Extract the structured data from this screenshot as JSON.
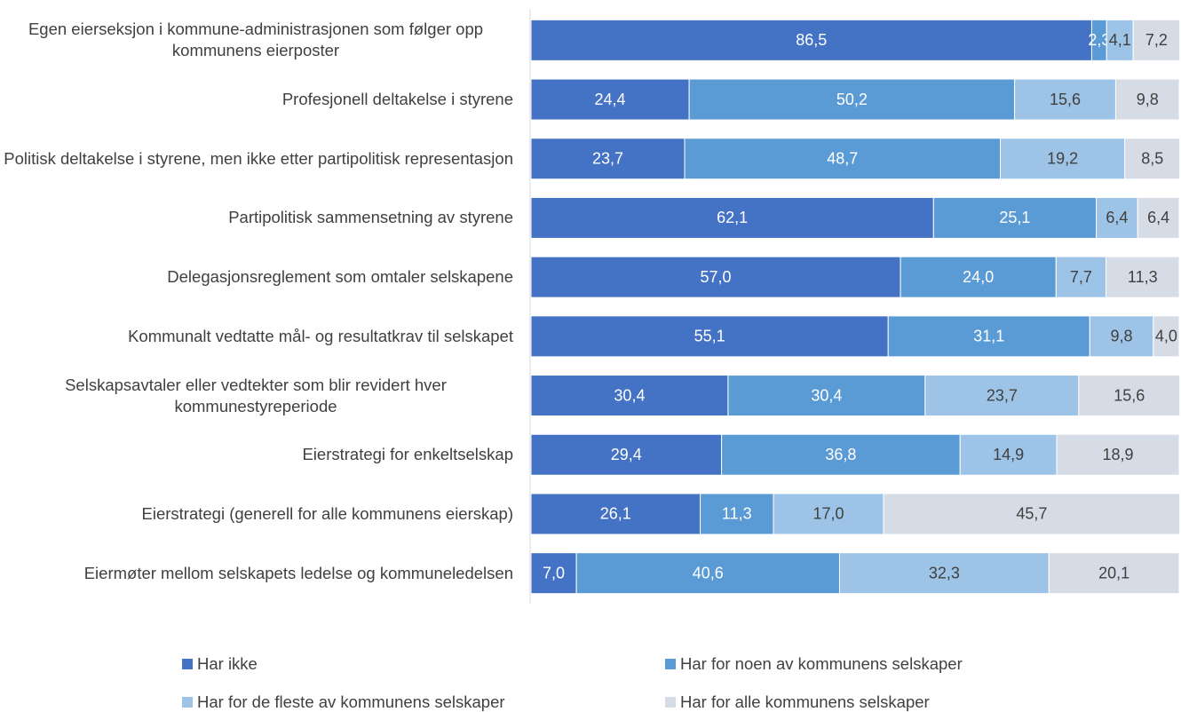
{
  "chart_data": {
    "type": "stacked-barh",
    "categories": [
      "Egen eierseksjon i kommune-administrasjonen som følger opp kommunens eierposter",
      "Profesjonell deltakelse i styrene",
      "Politisk deltakelse i styrene, men ikke etter partipolitisk representasjon",
      "Partipolitisk sammensetning av styrene",
      "Delegasjonsreglement som omtaler selskapene",
      "Kommunalt vedtatte mål- og resultatkrav til selskapet",
      "Selskapsavtaler eller vedtekter som blir revidert hver kommunestyreperiode",
      "Eierstrategi for enkeltselskap",
      "Eierstrategi (generell for alle kommunens eierskap)",
      "Eiermøter mellom selskapets ledelse og kommuneledelsen"
    ],
    "series": [
      {
        "name": "Har ikke",
        "color": "#4472c4",
        "values": [
          86.5,
          24.4,
          23.7,
          62.1,
          57.0,
          55.1,
          30.4,
          29.4,
          26.1,
          7.0
        ],
        "value_labels": [
          "86,5",
          "24,4",
          "23,7",
          "62,1",
          "57,0",
          "55,1",
          "30,4",
          "29,4",
          "26,1",
          "7,0"
        ]
      },
      {
        "name": "Har for noen av kommunens selskaper",
        "color": "#5b9bd5",
        "values": [
          2.3,
          50.2,
          48.7,
          25.1,
          24.0,
          31.1,
          30.4,
          36.8,
          11.3,
          40.6
        ],
        "value_labels": [
          "2,3",
          "50,2",
          "48,7",
          "25,1",
          "24,0",
          "31,1",
          "30,4",
          "36,8",
          "11,3",
          "40,6"
        ]
      },
      {
        "name": "Har for de fleste av kommunens selskaper",
        "color": "#9dc3e6",
        "values": [
          4.1,
          15.6,
          19.2,
          6.4,
          7.7,
          9.8,
          23.7,
          14.9,
          17.0,
          32.3
        ],
        "value_labels": [
          "4,1",
          "15,6",
          "19,2",
          "6,4",
          "7,7",
          "9,8",
          "23,7",
          "14,9",
          "17,0",
          "32,3"
        ]
      },
      {
        "name": "Har for alle kommunens selskaper",
        "color": "#d6dce5",
        "values": [
          7.2,
          9.8,
          8.5,
          6.4,
          11.3,
          4.0,
          15.6,
          18.9,
          45.7,
          20.1
        ],
        "value_labels": [
          "7,2",
          "9,8",
          "8,5",
          "6,4",
          "11,3",
          "4,0",
          "15,6",
          "18,9",
          "45,7",
          "20,1"
        ]
      }
    ],
    "xlim": [
      0,
      100
    ]
  }
}
